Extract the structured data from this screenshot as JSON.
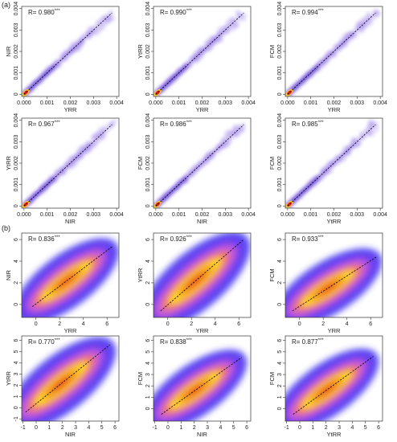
{
  "panel_labels": [
    "(a)",
    "(b)"
  ],
  "chart_data": [
    {
      "type": "scatter",
      "panel": "a",
      "r_label": "R= 0.980",
      "sig": "***",
      "xlabel": "YRR",
      "ylabel": "NIR",
      "xlim": [
        -0.0001,
        0.0041
      ],
      "ylim": [
        -0.0001,
        0.0041
      ],
      "xticks": [
        {
          "v": 0,
          "t": "0.000"
        },
        {
          "v": 0.001,
          "t": "0.001"
        },
        {
          "v": 0.002,
          "t": "0.002"
        },
        {
          "v": 0.003,
          "t": "0.003"
        },
        {
          "v": 0.004,
          "t": "0.004"
        }
      ],
      "yticks": [
        {
          "v": 0,
          "t": "0"
        },
        {
          "v": 0.001,
          "t": "0.001"
        },
        {
          "v": 0.002,
          "t": "0.002"
        },
        {
          "v": 0.003,
          "t": "0.003"
        },
        {
          "v": 0.004,
          "t": "0.004"
        }
      ],
      "fit": [
        [
          0,
          0
        ],
        [
          0.0038,
          0.0038
        ]
      ]
    },
    {
      "type": "scatter",
      "panel": "a",
      "r_label": "R= 0.990",
      "sig": "***",
      "xlabel": "YRR",
      "ylabel": "YtRR",
      "xlim": [
        -0.0001,
        0.0041
      ],
      "ylim": [
        -0.0001,
        0.0041
      ],
      "xticks": [
        {
          "v": 0,
          "t": "0.000"
        },
        {
          "v": 0.001,
          "t": "0.001"
        },
        {
          "v": 0.002,
          "t": "0.002"
        },
        {
          "v": 0.003,
          "t": "0.003"
        },
        {
          "v": 0.004,
          "t": "0.004"
        }
      ],
      "yticks": [
        {
          "v": 0,
          "t": "0"
        },
        {
          "v": 0.001,
          "t": "0.001"
        },
        {
          "v": 0.002,
          "t": "0.002"
        },
        {
          "v": 0.003,
          "t": "0.003"
        },
        {
          "v": 0.004,
          "t": "0.004"
        }
      ],
      "fit": [
        [
          0,
          0
        ],
        [
          0.0038,
          0.0038
        ]
      ]
    },
    {
      "type": "scatter",
      "panel": "a",
      "r_label": "R= 0.994",
      "sig": "***",
      "xlabel": "YRR",
      "ylabel": "FCM",
      "xlim": [
        -0.0001,
        0.0041
      ],
      "ylim": [
        -0.0001,
        0.0041
      ],
      "xticks": [
        {
          "v": 0,
          "t": "0.000"
        },
        {
          "v": 0.001,
          "t": "0.001"
        },
        {
          "v": 0.002,
          "t": "0.002"
        },
        {
          "v": 0.003,
          "t": "0.003"
        },
        {
          "v": 0.004,
          "t": "0.004"
        }
      ],
      "yticks": [
        {
          "v": 0,
          "t": "0"
        },
        {
          "v": 0.001,
          "t": "0.001"
        },
        {
          "v": 0.002,
          "t": "0.002"
        },
        {
          "v": 0.003,
          "t": "0.003"
        },
        {
          "v": 0.004,
          "t": "0.004"
        }
      ],
      "fit": [
        [
          0,
          0
        ],
        [
          0.0038,
          0.0038
        ]
      ]
    },
    {
      "type": "scatter",
      "panel": "a",
      "r_label": "R= 0.967",
      "sig": "***",
      "xlabel": "NIR",
      "ylabel": "YtRR",
      "xlim": [
        -0.0001,
        0.0041
      ],
      "ylim": [
        -0.0001,
        0.0041
      ],
      "xticks": [
        {
          "v": 0,
          "t": "0.000"
        },
        {
          "v": 0.001,
          "t": "0.001"
        },
        {
          "v": 0.002,
          "t": "0.002"
        },
        {
          "v": 0.003,
          "t": "0.003"
        },
        {
          "v": 0.004,
          "t": "0.004"
        }
      ],
      "yticks": [
        {
          "v": 0,
          "t": "0"
        },
        {
          "v": 0.001,
          "t": "0.001"
        },
        {
          "v": 0.002,
          "t": "0.002"
        },
        {
          "v": 0.003,
          "t": "0.003"
        },
        {
          "v": 0.004,
          "t": "0.004"
        }
      ],
      "fit": [
        [
          0,
          0
        ],
        [
          0.0038,
          0.0038
        ]
      ]
    },
    {
      "type": "scatter",
      "panel": "a",
      "r_label": "R= 0.986",
      "sig": "***",
      "xlabel": "NIR",
      "ylabel": "FCM",
      "xlim": [
        -0.0001,
        0.0041
      ],
      "ylim": [
        -0.0001,
        0.0041
      ],
      "xticks": [
        {
          "v": 0,
          "t": "0.000"
        },
        {
          "v": 0.001,
          "t": "0.001"
        },
        {
          "v": 0.002,
          "t": "0.002"
        },
        {
          "v": 0.003,
          "t": "0.003"
        },
        {
          "v": 0.004,
          "t": "0.004"
        }
      ],
      "yticks": [
        {
          "v": 0,
          "t": "0"
        },
        {
          "v": 0.001,
          "t": "0.001"
        },
        {
          "v": 0.002,
          "t": "0.002"
        },
        {
          "v": 0.003,
          "t": "0.003"
        },
        {
          "v": 0.004,
          "t": "0.004"
        }
      ],
      "fit": [
        [
          0,
          0
        ],
        [
          0.0038,
          0.0038
        ]
      ]
    },
    {
      "type": "scatter",
      "panel": "a",
      "r_label": "R= 0.985",
      "sig": "***",
      "xlabel": "YtRR",
      "ylabel": "FCM",
      "xlim": [
        -0.0001,
        0.0041
      ],
      "ylim": [
        -0.0001,
        0.0041
      ],
      "xticks": [
        {
          "v": 0,
          "t": "0.000"
        },
        {
          "v": 0.001,
          "t": "0.001"
        },
        {
          "v": 0.002,
          "t": "0.002"
        },
        {
          "v": 0.003,
          "t": "0.003"
        },
        {
          "v": 0.004,
          "t": "0.004"
        }
      ],
      "yticks": [
        {
          "v": 0,
          "t": "0"
        },
        {
          "v": 0.001,
          "t": "0.001"
        },
        {
          "v": 0.002,
          "t": "0.002"
        },
        {
          "v": 0.003,
          "t": "0.003"
        },
        {
          "v": 0.004,
          "t": "0.004"
        }
      ],
      "fit": [
        [
          0,
          0
        ],
        [
          0.0038,
          0.0038
        ]
      ]
    },
    {
      "type": "heatmap",
      "panel": "b",
      "r_label": "R= 0.836",
      "sig": "***",
      "xlabel": "YRR",
      "ylabel": "NIR",
      "xlim": [
        -1.2,
        7
      ],
      "ylim": [
        -1.2,
        6.6
      ],
      "xticks": [
        {
          "v": 0,
          "t": "0"
        },
        {
          "v": 2,
          "t": "2"
        },
        {
          "v": 4,
          "t": "4"
        },
        {
          "v": 6,
          "t": "6"
        }
      ],
      "yticks": [
        {
          "v": 0,
          "t": "0"
        },
        {
          "v": 2,
          "t": "2"
        },
        {
          "v": 4,
          "t": "4"
        },
        {
          "v": 6,
          "t": "6"
        }
      ],
      "fit": [
        [
          -0.3,
          -0.2
        ],
        [
          6.5,
          5.4
        ]
      ]
    },
    {
      "type": "heatmap",
      "panel": "b",
      "r_label": "R= 0.926",
      "sig": "***",
      "xlabel": "YRR",
      "ylabel": "YtRR",
      "xlim": [
        -1.2,
        7
      ],
      "ylim": [
        -1.2,
        6.6
      ],
      "xticks": [
        {
          "v": 0,
          "t": "0"
        },
        {
          "v": 2,
          "t": "2"
        },
        {
          "v": 4,
          "t": "4"
        },
        {
          "v": 6,
          "t": "6"
        }
      ],
      "yticks": [
        {
          "v": 0,
          "t": "0"
        },
        {
          "v": 2,
          "t": "2"
        },
        {
          "v": 4,
          "t": "4"
        },
        {
          "v": 6,
          "t": "6"
        }
      ],
      "fit": [
        [
          -0.6,
          -0.6
        ],
        [
          6.4,
          6
        ]
      ]
    },
    {
      "type": "heatmap",
      "panel": "b",
      "r_label": "R= 0.933",
      "sig": "***",
      "xlabel": "YRR",
      "ylabel": "FCM",
      "xlim": [
        -1.2,
        7
      ],
      "ylim": [
        -1.2,
        6.6
      ],
      "xticks": [
        {
          "v": 0,
          "t": "0"
        },
        {
          "v": 2,
          "t": "2"
        },
        {
          "v": 4,
          "t": "4"
        },
        {
          "v": 6,
          "t": "6"
        }
      ],
      "yticks": [
        {
          "v": 0,
          "t": "0"
        },
        {
          "v": 2,
          "t": "2"
        },
        {
          "v": 4,
          "t": "4"
        },
        {
          "v": 6,
          "t": "6"
        }
      ],
      "fit": [
        [
          -0.6,
          -0.6
        ],
        [
          6.5,
          4.4
        ]
      ]
    },
    {
      "type": "heatmap",
      "panel": "b",
      "r_label": "R= 0.770",
      "sig": "***",
      "xlabel": "NIR",
      "ylabel": "YtRR",
      "xlim": [
        -1.1,
        6.3
      ],
      "ylim": [
        -1.2,
        6.4
      ],
      "xticks": [
        {
          "v": -1,
          "t": "-1"
        },
        {
          "v": 0,
          "t": "0"
        },
        {
          "v": 1,
          "t": "1"
        },
        {
          "v": 2,
          "t": "2"
        },
        {
          "v": 3,
          "t": "3"
        },
        {
          "v": 4,
          "t": "4"
        },
        {
          "v": 5,
          "t": "5"
        },
        {
          "v": 6,
          "t": "6"
        }
      ],
      "yticks": [
        {
          "v": -1,
          "t": "-1"
        },
        {
          "v": 0,
          "t": "0"
        },
        {
          "v": 1,
          "t": "1"
        },
        {
          "v": 2,
          "t": "2"
        },
        {
          "v": 3,
          "t": "3"
        },
        {
          "v": 4,
          "t": "4"
        },
        {
          "v": 5,
          "t": "5"
        },
        {
          "v": 6,
          "t": "6"
        }
      ],
      "fit": [
        [
          -0.8,
          -0.4
        ],
        [
          5.6,
          5.6
        ]
      ]
    },
    {
      "type": "heatmap",
      "panel": "b",
      "r_label": "R= 0.838",
      "sig": "***",
      "xlabel": "NIR",
      "ylabel": "FCM",
      "xlim": [
        -1.1,
        6.3
      ],
      "ylim": [
        -1.1,
        6.4
      ],
      "xticks": [
        {
          "v": -1,
          "t": "-1"
        },
        {
          "v": 0,
          "t": "0"
        },
        {
          "v": 1,
          "t": "1"
        },
        {
          "v": 2,
          "t": "2"
        },
        {
          "v": 3,
          "t": "3"
        },
        {
          "v": 4,
          "t": "4"
        },
        {
          "v": 5,
          "t": "5"
        },
        {
          "v": 6,
          "t": "6"
        }
      ],
      "yticks": [
        {
          "v": 0,
          "t": "0"
        },
        {
          "v": 1,
          "t": "1"
        },
        {
          "v": 2,
          "t": "2"
        },
        {
          "v": 3,
          "t": "3"
        },
        {
          "v": 4,
          "t": "4"
        },
        {
          "v": 5,
          "t": "5"
        },
        {
          "v": 6,
          "t": "6"
        }
      ],
      "fit": [
        [
          -0.5,
          -0.5
        ],
        [
          5.6,
          4.5
        ]
      ]
    },
    {
      "type": "heatmap",
      "panel": "b",
      "r_label": "R= 0.877",
      "sig": "***",
      "xlabel": "YtRR",
      "ylabel": "FCM",
      "xlim": [
        -1.1,
        6.3
      ],
      "ylim": [
        -1.1,
        6.4
      ],
      "xticks": [
        {
          "v": -1,
          "t": "-1"
        },
        {
          "v": 0,
          "t": "0"
        },
        {
          "v": 1,
          "t": "1"
        },
        {
          "v": 2,
          "t": "2"
        },
        {
          "v": 3,
          "t": "3"
        },
        {
          "v": 4,
          "t": "4"
        },
        {
          "v": 5,
          "t": "5"
        },
        {
          "v": 6,
          "t": "6"
        }
      ],
      "yticks": [
        {
          "v": 0,
          "t": "0"
        },
        {
          "v": 1,
          "t": "1"
        },
        {
          "v": 2,
          "t": "2"
        },
        {
          "v": 3,
          "t": "3"
        },
        {
          "v": 4,
          "t": "4"
        },
        {
          "v": 5,
          "t": "5"
        },
        {
          "v": 6,
          "t": "6"
        }
      ],
      "fit": [
        [
          -0.5,
          -0.5
        ],
        [
          5.6,
          4.6
        ]
      ]
    }
  ],
  "colors": {
    "scatter_cloud": "#b7a3f2",
    "scatter_core": "#3a18c8",
    "density_low": "#3b2bf0",
    "density_mid": "#c85ad8",
    "density_high": "#ffd21a",
    "density_peak": "#e8241c",
    "fit_line": "#000000"
  }
}
